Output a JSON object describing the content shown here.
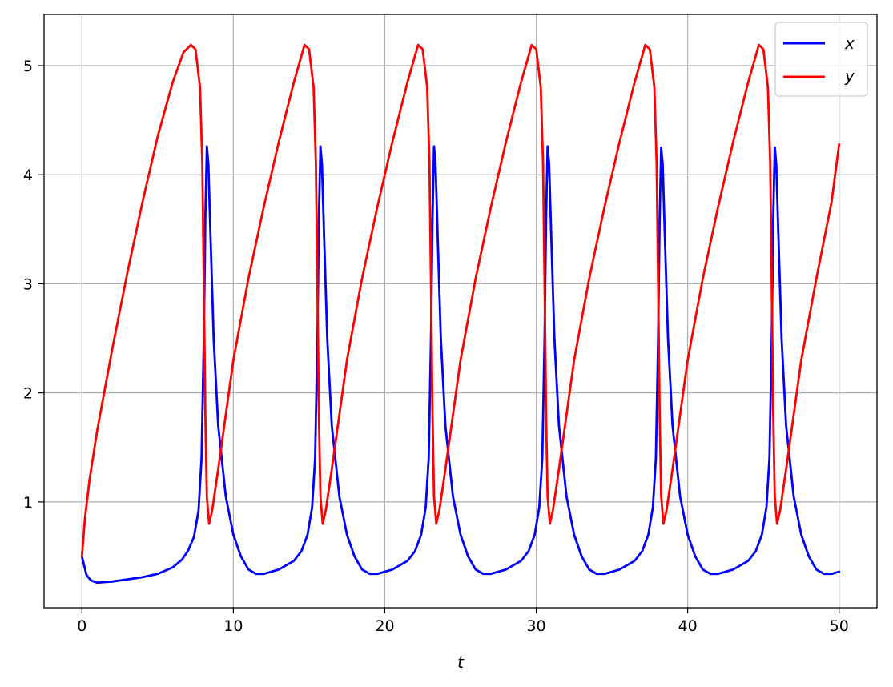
{
  "chart_data": {
    "type": "line",
    "title": "",
    "xlabel": "t",
    "ylabel": "",
    "xlim": [
      -2.5,
      52.5
    ],
    "ylim": [
      0.03,
      5.47
    ],
    "grid": true,
    "legend_position": "top-right",
    "x_ticks": [
      0,
      10,
      20,
      30,
      40,
      50
    ],
    "x_tick_labels": [
      "0",
      "10",
      "20",
      "30",
      "40",
      "50"
    ],
    "y_ticks": [
      1,
      2,
      3,
      4,
      5
    ],
    "y_tick_labels": [
      "1",
      "2",
      "3",
      "4",
      "5"
    ],
    "series": [
      {
        "name": "x",
        "color": "#0000ff",
        "points": [
          [
            0,
            0.5
          ],
          [
            0.3,
            0.33
          ],
          [
            0.6,
            0.28
          ],
          [
            1,
            0.26
          ],
          [
            2,
            0.27
          ],
          [
            3,
            0.29
          ],
          [
            4,
            0.31
          ],
          [
            5,
            0.34
          ],
          [
            6,
            0.4
          ],
          [
            6.6,
            0.47
          ],
          [
            7,
            0.55
          ],
          [
            7.4,
            0.68
          ],
          [
            7.7,
            0.92
          ],
          [
            7.9,
            1.4
          ],
          [
            8.05,
            2.5
          ],
          [
            8.15,
            3.6
          ],
          [
            8.25,
            4.26
          ],
          [
            8.35,
            4.1
          ],
          [
            8.5,
            3.4
          ],
          [
            8.7,
            2.5
          ],
          [
            9,
            1.7
          ],
          [
            9.5,
            1.05
          ],
          [
            10,
            0.7
          ],
          [
            10.5,
            0.5
          ],
          [
            11,
            0.38
          ],
          [
            11.5,
            0.34
          ],
          [
            12,
            0.34
          ],
          [
            13,
            0.38
          ],
          [
            14,
            0.46
          ],
          [
            14.5,
            0.55
          ],
          [
            14.9,
            0.7
          ],
          [
            15.2,
            0.95
          ],
          [
            15.4,
            1.4
          ],
          [
            15.55,
            2.5
          ],
          [
            15.65,
            3.6
          ],
          [
            15.75,
            4.26
          ],
          [
            15.85,
            4.1
          ],
          [
            16,
            3.4
          ],
          [
            16.2,
            2.5
          ],
          [
            16.5,
            1.7
          ],
          [
            17,
            1.05
          ],
          [
            17.5,
            0.7
          ],
          [
            18,
            0.5
          ],
          [
            18.5,
            0.38
          ],
          [
            19,
            0.34
          ],
          [
            19.5,
            0.34
          ],
          [
            20.5,
            0.38
          ],
          [
            21.5,
            0.46
          ],
          [
            22,
            0.55
          ],
          [
            22.4,
            0.7
          ],
          [
            22.7,
            0.95
          ],
          [
            22.9,
            1.4
          ],
          [
            23.05,
            2.5
          ],
          [
            23.15,
            3.6
          ],
          [
            23.25,
            4.26
          ],
          [
            23.35,
            4.1
          ],
          [
            23.5,
            3.4
          ],
          [
            23.7,
            2.5
          ],
          [
            24,
            1.7
          ],
          [
            24.5,
            1.05
          ],
          [
            25,
            0.7
          ],
          [
            25.5,
            0.5
          ],
          [
            26,
            0.38
          ],
          [
            26.5,
            0.34
          ],
          [
            27,
            0.34
          ],
          [
            28,
            0.38
          ],
          [
            29,
            0.46
          ],
          [
            29.5,
            0.55
          ],
          [
            29.9,
            0.7
          ],
          [
            30.2,
            0.95
          ],
          [
            30.4,
            1.4
          ],
          [
            30.55,
            2.5
          ],
          [
            30.65,
            3.6
          ],
          [
            30.75,
            4.26
          ],
          [
            30.85,
            4.1
          ],
          [
            31,
            3.4
          ],
          [
            31.2,
            2.5
          ],
          [
            31.5,
            1.7
          ],
          [
            32,
            1.05
          ],
          [
            32.5,
            0.7
          ],
          [
            33,
            0.5
          ],
          [
            33.5,
            0.38
          ],
          [
            34,
            0.34
          ],
          [
            34.5,
            0.34
          ],
          [
            35.5,
            0.38
          ],
          [
            36.5,
            0.46
          ],
          [
            37,
            0.55
          ],
          [
            37.4,
            0.7
          ],
          [
            37.7,
            0.95
          ],
          [
            37.9,
            1.4
          ],
          [
            38.05,
            2.5
          ],
          [
            38.15,
            3.6
          ],
          [
            38.25,
            4.25
          ],
          [
            38.35,
            4.1
          ],
          [
            38.5,
            3.4
          ],
          [
            38.7,
            2.5
          ],
          [
            39,
            1.7
          ],
          [
            39.5,
            1.05
          ],
          [
            40,
            0.7
          ],
          [
            40.5,
            0.5
          ],
          [
            41,
            0.38
          ],
          [
            41.5,
            0.34
          ],
          [
            42,
            0.34
          ],
          [
            43,
            0.38
          ],
          [
            44,
            0.46
          ],
          [
            44.5,
            0.55
          ],
          [
            44.9,
            0.7
          ],
          [
            45.2,
            0.95
          ],
          [
            45.4,
            1.4
          ],
          [
            45.55,
            2.5
          ],
          [
            45.65,
            3.6
          ],
          [
            45.75,
            4.25
          ],
          [
            45.85,
            4.1
          ],
          [
            46,
            3.4
          ],
          [
            46.2,
            2.5
          ],
          [
            46.5,
            1.7
          ],
          [
            47,
            1.05
          ],
          [
            47.5,
            0.7
          ],
          [
            48,
            0.5
          ],
          [
            48.5,
            0.38
          ],
          [
            49,
            0.34
          ],
          [
            49.5,
            0.34
          ],
          [
            50,
            0.36
          ]
        ]
      },
      {
        "name": "y",
        "color": "#ff0000",
        "points": [
          [
            0,
            0.5
          ],
          [
            0.2,
            0.85
          ],
          [
            0.5,
            1.2
          ],
          [
            1,
            1.65
          ],
          [
            2,
            2.4
          ],
          [
            3,
            3.1
          ],
          [
            4,
            3.75
          ],
          [
            5,
            4.35
          ],
          [
            6,
            4.85
          ],
          [
            6.7,
            5.12
          ],
          [
            7.2,
            5.19
          ],
          [
            7.5,
            5.15
          ],
          [
            7.8,
            4.8
          ],
          [
            7.95,
            4.1
          ],
          [
            8.05,
            3.0
          ],
          [
            8.15,
            1.8
          ],
          [
            8.25,
            1.05
          ],
          [
            8.4,
            0.8
          ],
          [
            8.6,
            0.92
          ],
          [
            9,
            1.3
          ],
          [
            9.5,
            1.8
          ],
          [
            10,
            2.3
          ],
          [
            11,
            3.05
          ],
          [
            12,
            3.7
          ],
          [
            13,
            4.3
          ],
          [
            14,
            4.85
          ],
          [
            14.7,
            5.19
          ],
          [
            15,
            5.15
          ],
          [
            15.3,
            4.8
          ],
          [
            15.45,
            4.1
          ],
          [
            15.55,
            3.0
          ],
          [
            15.65,
            1.8
          ],
          [
            15.75,
            1.05
          ],
          [
            15.9,
            0.8
          ],
          [
            16.1,
            0.92
          ],
          [
            16.5,
            1.3
          ],
          [
            17,
            1.8
          ],
          [
            17.5,
            2.3
          ],
          [
            18.5,
            3.05
          ],
          [
            19.5,
            3.7
          ],
          [
            20.5,
            4.3
          ],
          [
            21.5,
            4.85
          ],
          [
            22.2,
            5.19
          ],
          [
            22.5,
            5.15
          ],
          [
            22.8,
            4.8
          ],
          [
            22.95,
            4.1
          ],
          [
            23.05,
            3.0
          ],
          [
            23.15,
            1.8
          ],
          [
            23.25,
            1.05
          ],
          [
            23.4,
            0.8
          ],
          [
            23.6,
            0.92
          ],
          [
            24,
            1.3
          ],
          [
            24.5,
            1.8
          ],
          [
            25,
            2.3
          ],
          [
            26,
            3.05
          ],
          [
            27,
            3.7
          ],
          [
            28,
            4.3
          ],
          [
            29,
            4.85
          ],
          [
            29.7,
            5.19
          ],
          [
            30,
            5.15
          ],
          [
            30.3,
            4.8
          ],
          [
            30.45,
            4.1
          ],
          [
            30.55,
            3.0
          ],
          [
            30.65,
            1.8
          ],
          [
            30.75,
            1.05
          ],
          [
            30.9,
            0.8
          ],
          [
            31.1,
            0.92
          ],
          [
            31.5,
            1.3
          ],
          [
            32,
            1.8
          ],
          [
            32.5,
            2.3
          ],
          [
            33.5,
            3.05
          ],
          [
            34.5,
            3.7
          ],
          [
            35.5,
            4.3
          ],
          [
            36.5,
            4.85
          ],
          [
            37.2,
            5.19
          ],
          [
            37.5,
            5.15
          ],
          [
            37.8,
            4.8
          ],
          [
            37.95,
            4.1
          ],
          [
            38.05,
            3.0
          ],
          [
            38.15,
            1.8
          ],
          [
            38.25,
            1.05
          ],
          [
            38.4,
            0.8
          ],
          [
            38.6,
            0.92
          ],
          [
            39,
            1.3
          ],
          [
            39.5,
            1.8
          ],
          [
            40,
            2.3
          ],
          [
            41,
            3.05
          ],
          [
            42,
            3.7
          ],
          [
            43,
            4.3
          ],
          [
            44,
            4.85
          ],
          [
            44.7,
            5.19
          ],
          [
            45,
            5.15
          ],
          [
            45.3,
            4.8
          ],
          [
            45.45,
            4.1
          ],
          [
            45.55,
            3.0
          ],
          [
            45.65,
            1.8
          ],
          [
            45.75,
            1.05
          ],
          [
            45.9,
            0.8
          ],
          [
            46.1,
            0.92
          ],
          [
            46.5,
            1.3
          ],
          [
            47,
            1.8
          ],
          [
            47.5,
            2.3
          ],
          [
            48.5,
            3.05
          ],
          [
            49.5,
            3.75
          ],
          [
            50,
            4.28
          ]
        ]
      }
    ]
  }
}
